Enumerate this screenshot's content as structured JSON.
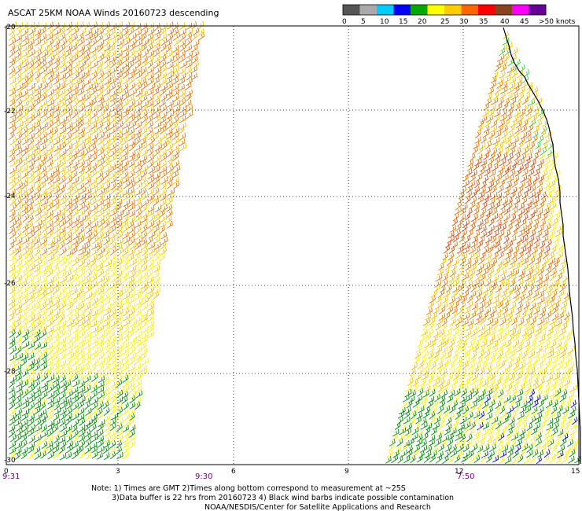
{
  "title": "ASCAT 25KM NOAA Winds 20160723 descending",
  "legend": {
    "labels": [
      "0",
      "5",
      "10",
      "15",
      "20",
      "25",
      "30",
      "35",
      "40",
      "45",
      ">50 knots"
    ],
    "colors": [
      "#555555",
      "#aaaaaa",
      "#00ccff",
      "#0000ff",
      "#00aa00",
      "#ffff00",
      "#ffcc00",
      "#ff6600",
      "#ff0000",
      "#884422",
      "#ff00ff",
      "#660099"
    ]
  },
  "latitude_labels": [
    "-20",
    "-22",
    "-24",
    "-26",
    "-28",
    "-30"
  ],
  "longitude_labels": [
    "0",
    "3",
    "6",
    "9",
    "12",
    "15"
  ],
  "time_labels": [
    "9:31",
    "9:30",
    "7:50"
  ],
  "notes": {
    "line1": "Note: 1) Times are GMT 2)Times along bottom correspond to measurement at ~25S",
    "line2": "3)Data buffer is 22 hrs from 20160723 4) Black wind barbs indicate possible contamination",
    "line3": "NOAA/NESDIS/Center for Satellite Applications and Research"
  },
  "colors": {
    "frame": "#000000",
    "grid": "#000000",
    "time_label": "#800080",
    "barb_green": "#008800",
    "barb_light_green": "#44cc44",
    "barb_yellow": "#ffee00",
    "barb_gold": "#f2c200",
    "barb_orange": "#e07a10",
    "barb_red_orange": "#d0501a",
    "barb_blue": "#0000cc"
  }
}
